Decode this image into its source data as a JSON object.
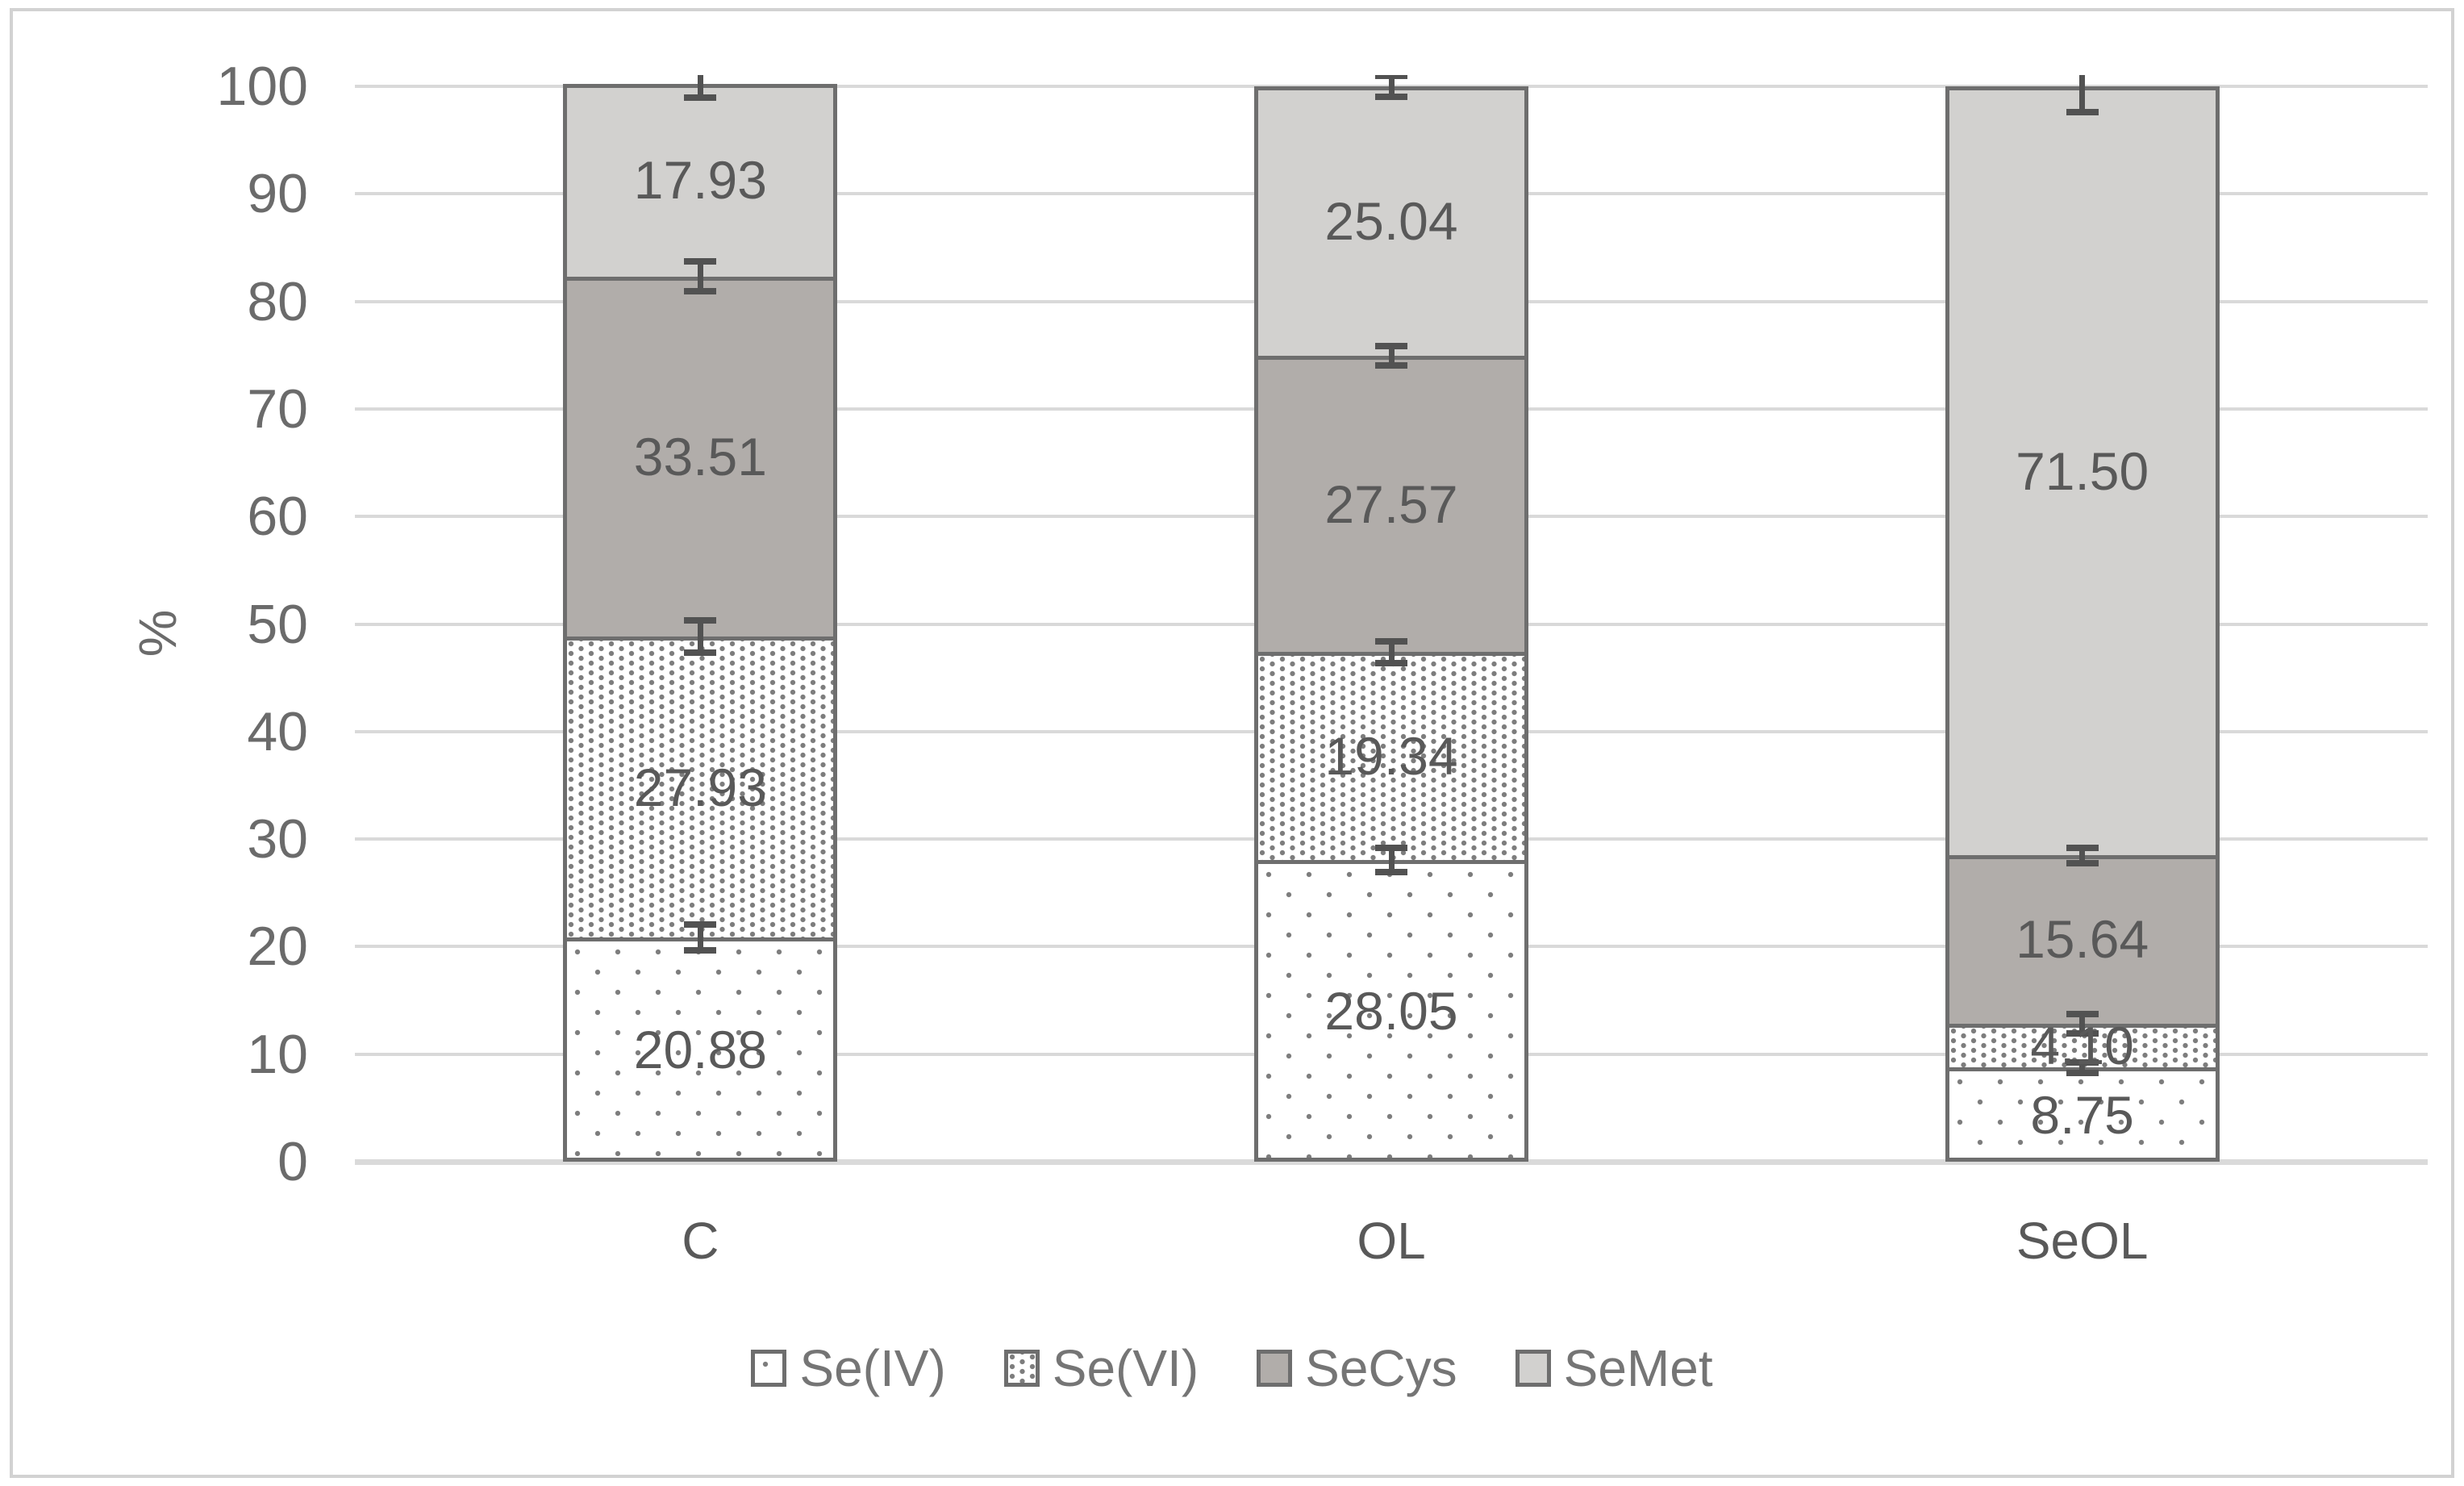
{
  "chart_data": {
    "type": "bar",
    "stacked": true,
    "title": "",
    "xlabel": "",
    "ylabel": "%",
    "ylim": [
      0,
      100
    ],
    "yticks": [
      0,
      10,
      20,
      30,
      40,
      50,
      60,
      70,
      80,
      90,
      100
    ],
    "grid": true,
    "legend_position": "bottom",
    "categories": [
      "C",
      "OL",
      "SeOL"
    ],
    "series": [
      {
        "name": "Se(IV)",
        "style": "dots-sparse",
        "values": [
          20.88,
          28.05,
          8.75
        ],
        "errors": [
          1.2,
          1.1,
          0.5
        ]
      },
      {
        "name": "Se(VI)",
        "style": "dots-dense",
        "values": [
          27.93,
          19.34,
          4.1
        ],
        "errors": [
          1.5,
          1.0,
          0.9
        ]
      },
      {
        "name": "SeCys",
        "style": "solid",
        "fill": "#b1adaa",
        "values": [
          33.51,
          27.57,
          15.64
        ],
        "errors": [
          1.4,
          0.9,
          0.7
        ]
      },
      {
        "name": "SeMet",
        "style": "solid",
        "fill": "#d2d1cf",
        "values": [
          17.93,
          25.04,
          71.5
        ],
        "errors": [
          1.3,
          1.0,
          2.4
        ]
      }
    ],
    "value_label_decimals": 2,
    "colors": {
      "grid": "#d9d9d9",
      "axis_line": "#dadada",
      "bar_border": "#6e6e6e",
      "error_bar": "#525252",
      "tick_label": "#6b6b6b",
      "data_label": "#595959",
      "legend_label": "#757575",
      "pattern_dot": "#7d7d7d",
      "frame": "#d2d2d2"
    }
  }
}
